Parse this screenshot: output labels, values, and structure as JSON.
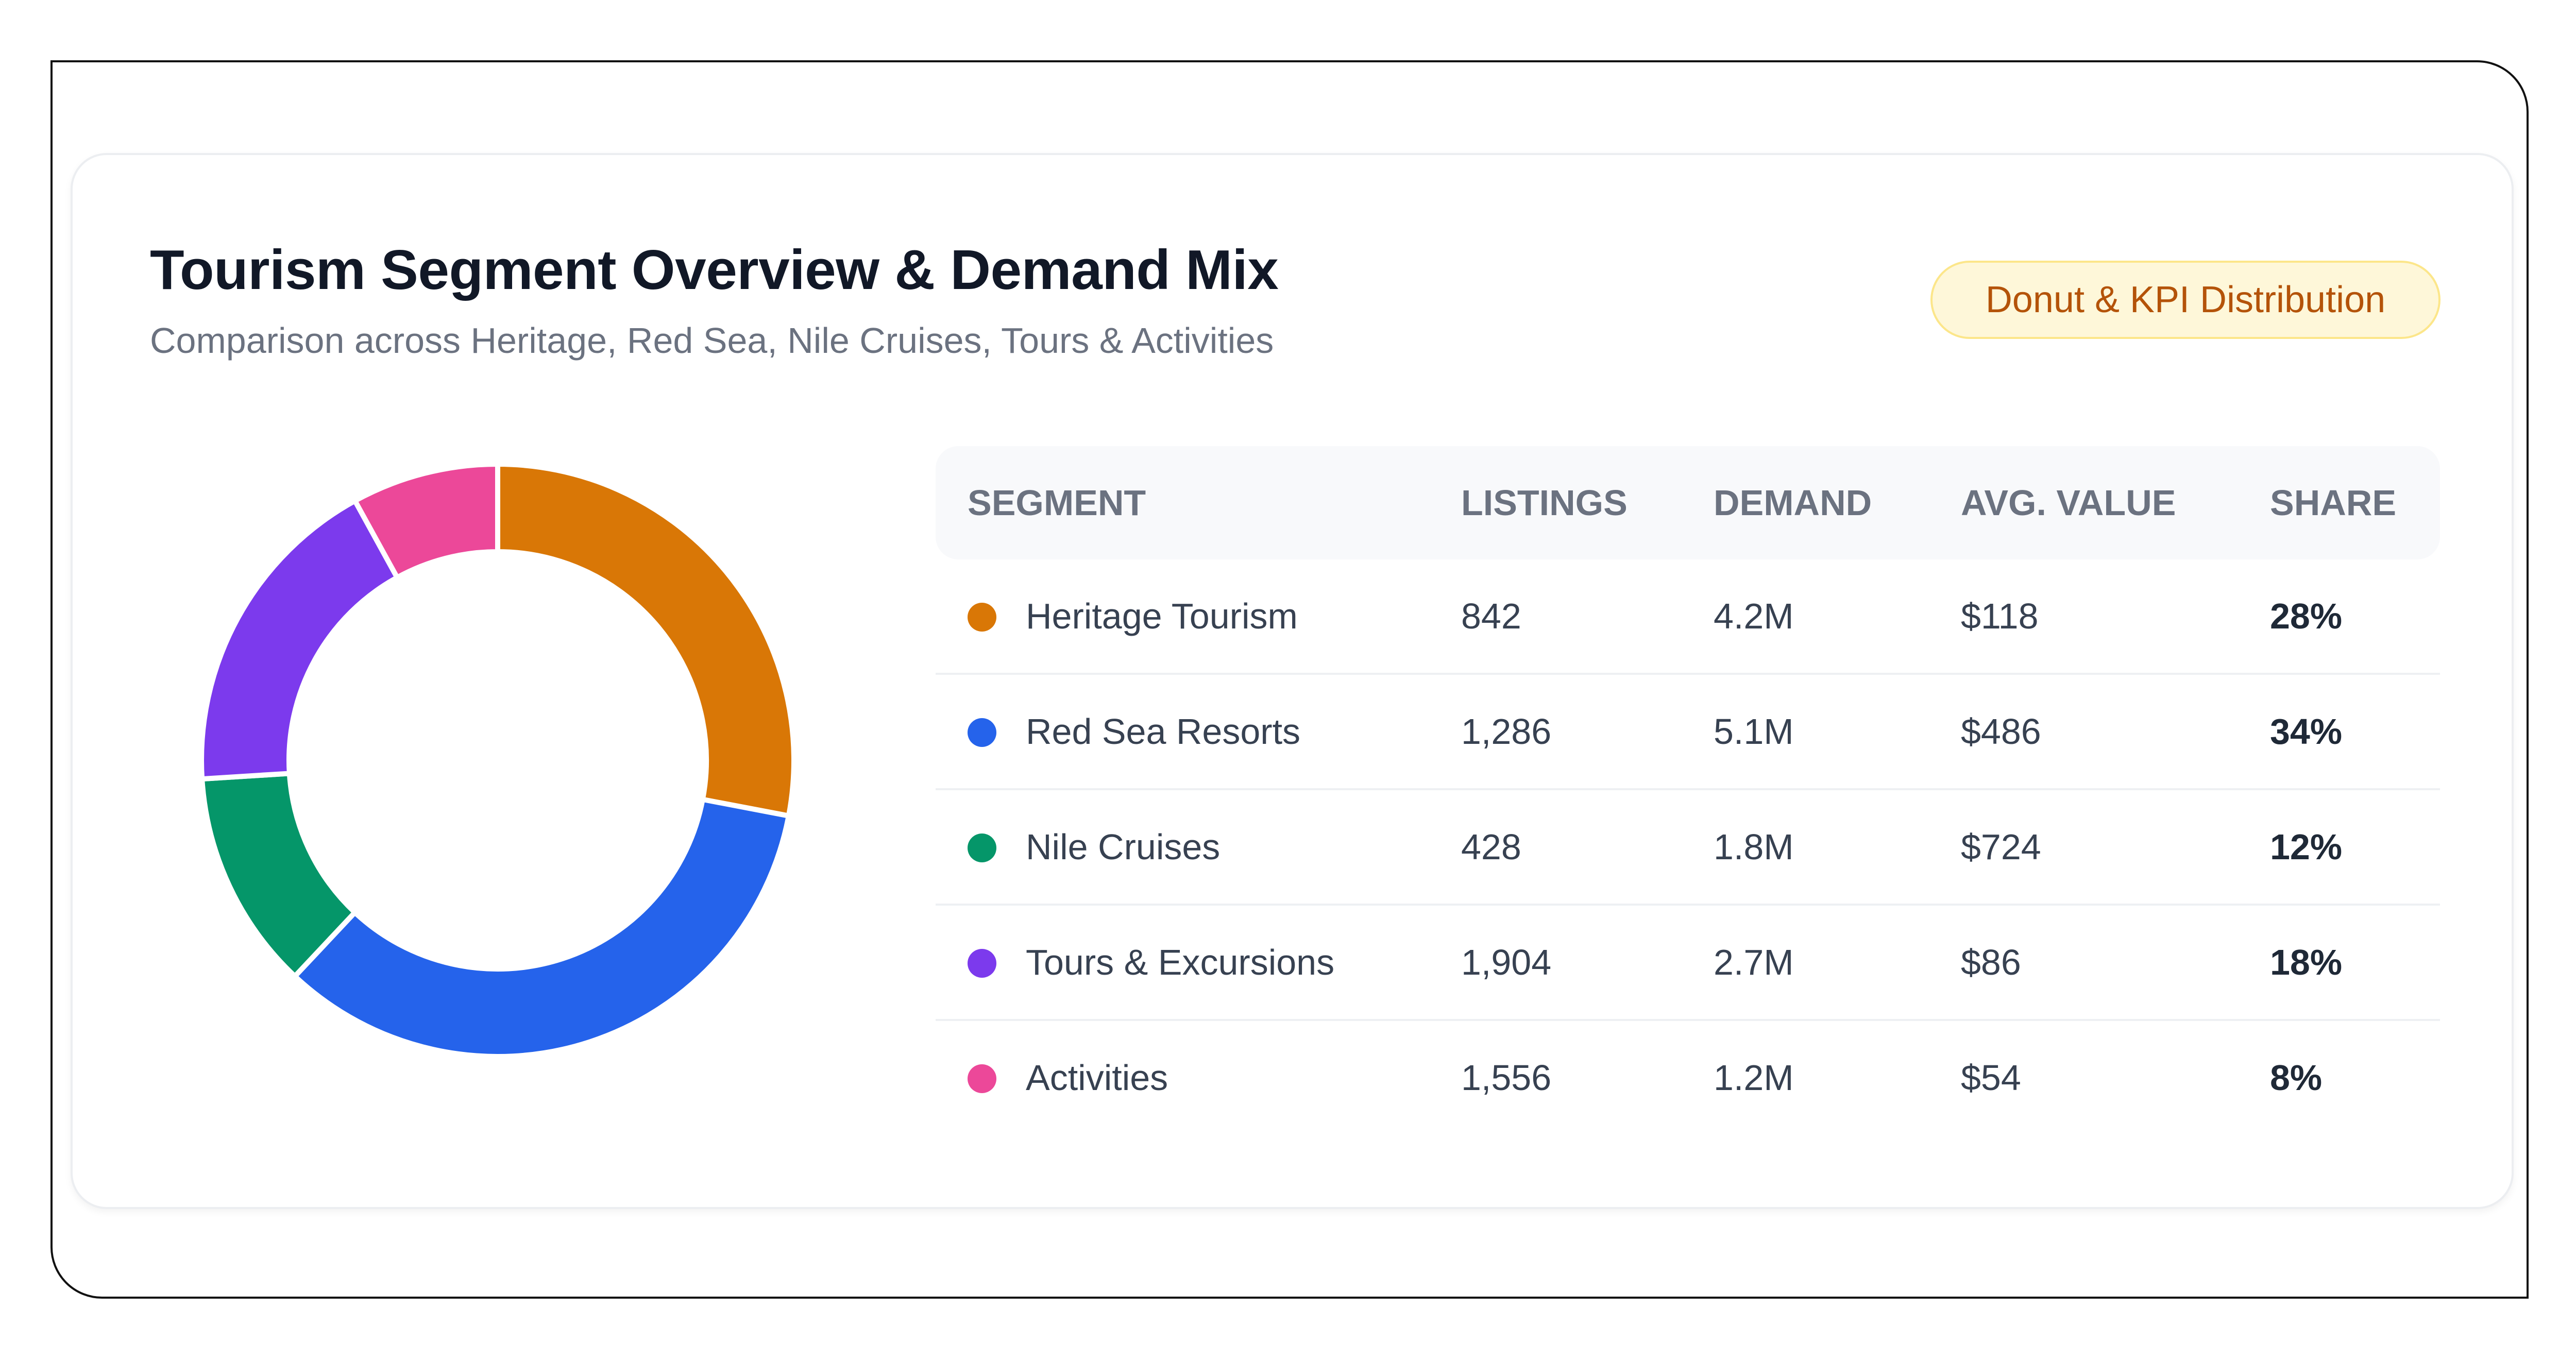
{
  "header": {
    "title": "Tourism Segment Overview & Demand Mix",
    "subtitle": "Comparison across Heritage, Red Sea, Nile Cruises, Tours & Activities",
    "badge": "Donut & KPI Distribution"
  },
  "colors": {
    "heritage": "#d97706",
    "red_sea": "#2563eb",
    "nile": "#059669",
    "tours": "#7c3aed",
    "activities": "#ec4899"
  },
  "table": {
    "headers": [
      "SEGMENT",
      "LISTINGS",
      "DEMAND",
      "AVG. VALUE",
      "SHARE"
    ],
    "rows": [
      {
        "segment": "Heritage Tourism",
        "listings": "842",
        "demand": "4.2M",
        "avg_value": "$118",
        "share": "28%",
        "color": "#d97706"
      },
      {
        "segment": "Red Sea Resorts",
        "listings": "1,286",
        "demand": "5.1M",
        "avg_value": "$486",
        "share": "34%",
        "color": "#2563eb"
      },
      {
        "segment": "Nile Cruises",
        "listings": "428",
        "demand": "1.8M",
        "avg_value": "$724",
        "share": "12%",
        "color": "#059669"
      },
      {
        "segment": "Tours & Excursions",
        "listings": "1,904",
        "demand": "2.7M",
        "avg_value": "$86",
        "share": "18%",
        "color": "#7c3aed"
      },
      {
        "segment": "Activities",
        "listings": "1,556",
        "demand": "1.2M",
        "avg_value": "$54",
        "share": "8%",
        "color": "#ec4899"
      }
    ]
  },
  "chart_data": {
    "type": "pie",
    "categories": [
      "Heritage Tourism",
      "Red Sea Resorts",
      "Nile Cruises",
      "Tours & Excursions",
      "Activities"
    ],
    "values": [
      28,
      34,
      12,
      18,
      8
    ],
    "colors": [
      "#d97706",
      "#2563eb",
      "#059669",
      "#7c3aed",
      "#ec4899"
    ],
    "title": "",
    "donut": true
  }
}
